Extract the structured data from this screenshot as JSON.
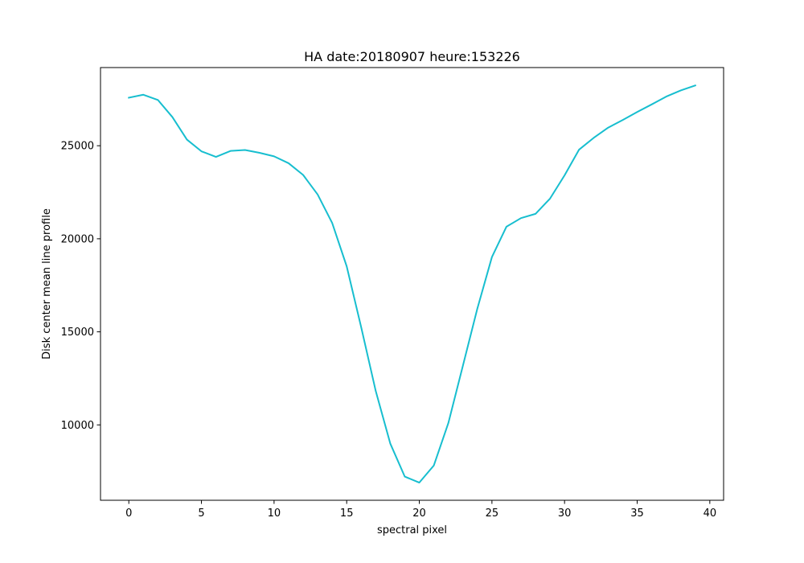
{
  "chart_data": {
    "type": "line",
    "title": "HA date:20180907 heure:153226",
    "xlabel": "spectral pixel",
    "ylabel": "Disk center mean line profile",
    "xlim": [
      -1.95,
      40.95
    ],
    "ylim": [
      5950,
      29200
    ],
    "xticks": [
      0,
      5,
      10,
      15,
      20,
      25,
      30,
      35,
      40
    ],
    "yticks": [
      10000,
      15000,
      20000,
      25000
    ],
    "grid": false,
    "legend": "none",
    "series": [
      {
        "color": "#17becf",
        "x": [
          0,
          1,
          2,
          3,
          4,
          5,
          6,
          7,
          8,
          9,
          10,
          11,
          12,
          13,
          14,
          15,
          16,
          17,
          18,
          19,
          20,
          21,
          22,
          23,
          24,
          25,
          26,
          27,
          28,
          29,
          30,
          31,
          32,
          33,
          34,
          35,
          36,
          37,
          38,
          39
        ],
        "y": [
          27580,
          27740,
          27460,
          26540,
          25330,
          24700,
          24400,
          24720,
          24770,
          24620,
          24430,
          24060,
          23430,
          22380,
          20850,
          18520,
          15240,
          11820,
          9000,
          7220,
          6900,
          7820,
          10100,
          13180,
          16260,
          19020,
          20650,
          21110,
          21340,
          22160,
          23410,
          24790,
          25420,
          25970,
          26380,
          26810,
          27220,
          27640,
          27970,
          28240
        ]
      }
    ]
  }
}
